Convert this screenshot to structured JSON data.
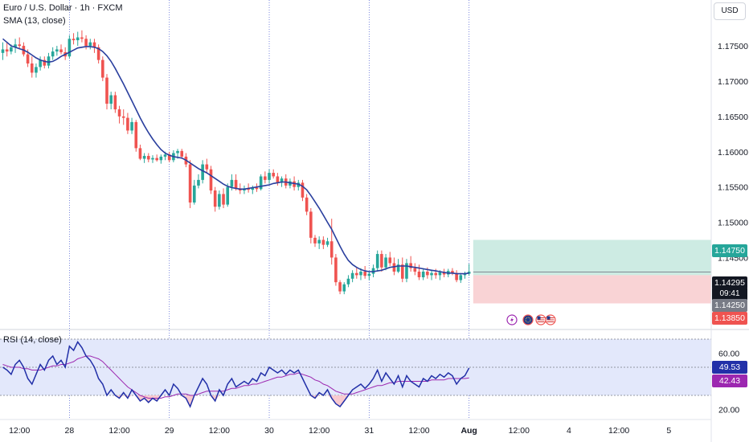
{
  "header": {
    "title": "Euro / U.S. Dollar · 1h · FXCM",
    "sma_label": "SMA (13, close)",
    "rsi_label": "RSI (14, close)",
    "currency": "USD"
  },
  "price_tags": {
    "target": "1.14750",
    "current": "1.14295",
    "countdown": "09:41",
    "entry": "1.14250",
    "stop": "1.13850"
  },
  "rsi_tags": {
    "rsi": "49.53",
    "rsi_ma": "42.43"
  },
  "colors": {
    "up": "#26a69a",
    "down": "#ef5350",
    "sma": "#2a3f9e",
    "rsi": "#2230a8",
    "rsi_ma": "#9c27b0",
    "target_zone": "#cdebe3",
    "stop_zone": "#f9d3d5",
    "rsi_band": "#e3e8fb"
  },
  "icons": [
    "lightning-event-icon",
    "eu-flag-icon",
    "us-flag-icon",
    "us-flag-icon"
  ],
  "chart_data": [
    {
      "type": "candlestick",
      "title": "Euro / U.S. Dollar · 1h · FXCM",
      "ylim": [
        1.1348,
        1.1815
      ],
      "y_ticks": [
        1.175,
        1.17,
        1.165,
        1.16,
        1.155,
        1.15,
        1.145
      ],
      "y_tick_labels": [
        "1.17500",
        "1.17000",
        "1.16500",
        "1.16000",
        "1.15500",
        "1.15000",
        "1.14500"
      ],
      "x_ticks": [
        {
          "label": "12:00",
          "t": 4
        },
        {
          "label": "28",
          "t": 16
        },
        {
          "label": "12:00",
          "t": 28
        },
        {
          "label": "29",
          "t": 40
        },
        {
          "label": "12:00",
          "t": 52
        },
        {
          "label": "30",
          "t": 64
        },
        {
          "label": "12:00",
          "t": 76
        },
        {
          "label": "31",
          "t": 88
        },
        {
          "label": "12:00",
          "t": 100
        },
        {
          "label": "Aug",
          "t": 112
        },
        {
          "label": "12:00",
          "t": 124
        },
        {
          "label": "4",
          "t": 136
        },
        {
          "label": "12:00",
          "t": 148
        },
        {
          "label": "5",
          "t": 160
        }
      ],
      "day_separators_t": [
        16,
        40,
        64,
        88,
        112
      ],
      "ohlc": [
        [
          1.174,
          1.1755,
          1.173,
          1.1745
        ],
        [
          1.1745,
          1.1755,
          1.1735,
          1.1742
        ],
        [
          1.1742,
          1.1752,
          1.1738,
          1.1748
        ],
        [
          1.1748,
          1.176,
          1.174,
          1.1752
        ],
        [
          1.1752,
          1.1762,
          1.1745,
          1.175
        ],
        [
          1.175,
          1.1755,
          1.1735,
          1.1738
        ],
        [
          1.1738,
          1.1745,
          1.172,
          1.1725
        ],
        [
          1.1725,
          1.1735,
          1.1705,
          1.1712
        ],
        [
          1.1712,
          1.1725,
          1.1705,
          1.172
        ],
        [
          1.172,
          1.1735,
          1.1715,
          1.173
        ],
        [
          1.173,
          1.1735,
          1.1718,
          1.1722
        ],
        [
          1.1722,
          1.174,
          1.1718,
          1.1735
        ],
        [
          1.1735,
          1.1748,
          1.173,
          1.1742
        ],
        [
          1.1742,
          1.175,
          1.1736,
          1.1745
        ],
        [
          1.1745,
          1.1752,
          1.1738,
          1.1741
        ],
        [
          1.1741,
          1.1748,
          1.173,
          1.1735
        ],
        [
          1.1735,
          1.1765,
          1.1732,
          1.176
        ],
        [
          1.176,
          1.1768,
          1.1752,
          1.1758
        ],
        [
          1.1758,
          1.177,
          1.175,
          1.1762
        ],
        [
          1.1762,
          1.1772,
          1.1755,
          1.176
        ],
        [
          1.176,
          1.1765,
          1.1745,
          1.175
        ],
        [
          1.175,
          1.176,
          1.1745,
          1.1755
        ],
        [
          1.1755,
          1.176,
          1.174,
          1.1748
        ],
        [
          1.1748,
          1.1752,
          1.1725,
          1.173
        ],
        [
          1.173,
          1.1735,
          1.17,
          1.1705
        ],
        [
          1.1705,
          1.171,
          1.166,
          1.1668
        ],
        [
          1.1668,
          1.1685,
          1.166,
          1.168
        ],
        [
          1.168,
          1.1685,
          1.1655,
          1.166
        ],
        [
          1.166,
          1.1665,
          1.164,
          1.165
        ],
        [
          1.165,
          1.166,
          1.1638,
          1.1648
        ],
        [
          1.1648,
          1.1655,
          1.1625,
          1.163
        ],
        [
          1.163,
          1.1648,
          1.1625,
          1.1642
        ],
        [
          1.1642,
          1.1645,
          1.16,
          1.1605
        ],
        [
          1.1605,
          1.161,
          1.1588,
          1.159
        ],
        [
          1.159,
          1.1598,
          1.1584,
          1.1594
        ],
        [
          1.1594,
          1.1598,
          1.1585,
          1.1589
        ],
        [
          1.1589,
          1.1595,
          1.1584,
          1.1591
        ],
        [
          1.1591,
          1.1596,
          1.1586,
          1.1588
        ],
        [
          1.1588,
          1.1596,
          1.1583,
          1.1593
        ],
        [
          1.1593,
          1.16,
          1.1588,
          1.1596
        ],
        [
          1.1596,
          1.16,
          1.1585,
          1.1588
        ],
        [
          1.1588,
          1.1602,
          1.1585,
          1.1598
        ],
        [
          1.1598,
          1.1604,
          1.159,
          1.1601
        ],
        [
          1.1601,
          1.1604,
          1.159,
          1.1593
        ],
        [
          1.1593,
          1.1598,
          1.1578,
          1.1582
        ],
        [
          1.1582,
          1.1588,
          1.152,
          1.1528
        ],
        [
          1.1528,
          1.156,
          1.1525,
          1.1552
        ],
        [
          1.1552,
          1.1568,
          1.1548,
          1.156
        ],
        [
          1.156,
          1.1588,
          1.1555,
          1.1582
        ],
        [
          1.1582,
          1.159,
          1.157,
          1.1575
        ],
        [
          1.1575,
          1.158,
          1.154,
          1.1545
        ],
        [
          1.1545,
          1.155,
          1.1515,
          1.1522
        ],
        [
          1.1522,
          1.1545,
          1.1518,
          1.154
        ],
        [
          1.154,
          1.1548,
          1.152,
          1.1525
        ],
        [
          1.1525,
          1.1555,
          1.1522,
          1.155
        ],
        [
          1.155,
          1.1568,
          1.1545,
          1.156
        ],
        [
          1.156,
          1.1568,
          1.1545,
          1.1548
        ],
        [
          1.1548,
          1.1555,
          1.154,
          1.1545
        ],
        [
          1.1545,
          1.1552,
          1.154,
          1.1548
        ],
        [
          1.1548,
          1.1555,
          1.1542,
          1.1546
        ],
        [
          1.1546,
          1.1552,
          1.154,
          1.1549
        ],
        [
          1.1549,
          1.1555,
          1.1543,
          1.1547
        ],
        [
          1.1547,
          1.1568,
          1.1545,
          1.1565
        ],
        [
          1.1565,
          1.1572,
          1.1555,
          1.156
        ],
        [
          1.156,
          1.1575,
          1.1555,
          1.157
        ],
        [
          1.157,
          1.1575,
          1.1562,
          1.1565
        ],
        [
          1.1565,
          1.157,
          1.1552,
          1.1556
        ],
        [
          1.1556,
          1.1565,
          1.155,
          1.1562
        ],
        [
          1.1562,
          1.1568,
          1.1548,
          1.1552
        ],
        [
          1.1552,
          1.1562,
          1.1548,
          1.1558
        ],
        [
          1.1558,
          1.1565,
          1.1545,
          1.155
        ],
        [
          1.155,
          1.156,
          1.1545,
          1.1556
        ],
        [
          1.1556,
          1.156,
          1.153,
          1.1535
        ],
        [
          1.1535,
          1.154,
          1.151,
          1.1515
        ],
        [
          1.1515,
          1.152,
          1.147,
          1.1478
        ],
        [
          1.1478,
          1.1482,
          1.1465,
          1.147
        ],
        [
          1.147,
          1.148,
          1.1462,
          1.1475
        ],
        [
          1.1475,
          1.148,
          1.1462,
          1.1468
        ],
        [
          1.1468,
          1.1478,
          1.1465,
          1.1473
        ],
        [
          1.1473,
          1.1505,
          1.144,
          1.145
        ],
        [
          1.145,
          1.1455,
          1.141,
          1.1415
        ],
        [
          1.1415,
          1.1418,
          1.1398,
          1.1402
        ],
        [
          1.1402,
          1.1415,
          1.1398,
          1.1412
        ],
        [
          1.1412,
          1.1425,
          1.1408,
          1.142
        ],
        [
          1.142,
          1.1432,
          1.1415,
          1.1428
        ],
        [
          1.1428,
          1.1436,
          1.142,
          1.1425
        ],
        [
          1.1425,
          1.1435,
          1.1418,
          1.143
        ],
        [
          1.143,
          1.1438,
          1.142,
          1.1424
        ],
        [
          1.1424,
          1.143,
          1.1418,
          1.1427
        ],
        [
          1.1427,
          1.144,
          1.1422,
          1.1435
        ],
        [
          1.1435,
          1.146,
          1.143,
          1.1455
        ],
        [
          1.1455,
          1.146,
          1.143,
          1.1436
        ],
        [
          1.1436,
          1.1455,
          1.1432,
          1.145
        ],
        [
          1.145,
          1.1458,
          1.1438,
          1.1442
        ],
        [
          1.1442,
          1.145,
          1.1425,
          1.143
        ],
        [
          1.143,
          1.1448,
          1.1428,
          1.144
        ],
        [
          1.144,
          1.145,
          1.1415,
          1.142
        ],
        [
          1.142,
          1.1448,
          1.1415,
          1.1442
        ],
        [
          1.1442,
          1.1452,
          1.143,
          1.1435
        ],
        [
          1.1435,
          1.1442,
          1.1425,
          1.143
        ],
        [
          1.143,
          1.144,
          1.1418,
          1.1422
        ],
        [
          1.1422,
          1.1435,
          1.1418,
          1.143
        ],
        [
          1.143,
          1.1436,
          1.142,
          1.1425
        ],
        [
          1.1425,
          1.1432,
          1.1418,
          1.1428
        ],
        [
          1.1428,
          1.1434,
          1.142,
          1.1425
        ],
        [
          1.1425,
          1.1432,
          1.1418,
          1.1429
        ],
        [
          1.1429,
          1.1434,
          1.1422,
          1.1426
        ],
        [
          1.1426,
          1.1434,
          1.1422,
          1.1431
        ],
        [
          1.1431,
          1.1435,
          1.1425,
          1.1428
        ],
        [
          1.1428,
          1.1432,
          1.1415,
          1.1418
        ],
        [
          1.1418,
          1.1428,
          1.1414,
          1.1425
        ],
        [
          1.1425,
          1.143,
          1.142,
          1.1427
        ],
        [
          1.1427,
          1.1441,
          1.1424,
          1.143
        ]
      ],
      "sma": [
        1.176,
        1.1755,
        1.175,
        1.1748,
        1.1746,
        1.1744,
        1.1741,
        1.1737,
        1.1733,
        1.173,
        1.1728,
        1.1727,
        1.1728,
        1.1731,
        1.1735,
        1.1738,
        1.1741,
        1.1744,
        1.1747,
        1.1748,
        1.1749,
        1.1749,
        1.1748,
        1.1746,
        1.1742,
        1.1736,
        1.1728,
        1.1718,
        1.1707,
        1.1696,
        1.1684,
        1.1672,
        1.166,
        1.1648,
        1.1637,
        1.1627,
        1.1618,
        1.161,
        1.1603,
        1.1598,
        1.1595,
        1.1593,
        1.1592,
        1.1591,
        1.1588,
        1.1584,
        1.158,
        1.1576,
        1.1573,
        1.157,
        1.1566,
        1.1562,
        1.1558,
        1.1554,
        1.1551,
        1.1549,
        1.1548,
        1.1547,
        1.1547,
        1.1548,
        1.1549,
        1.155,
        1.1551,
        1.1552,
        1.1553,
        1.1555,
        1.1556,
        1.1557,
        1.1557,
        1.1556,
        1.1555,
        1.1554,
        1.1551,
        1.1546,
        1.1538,
        1.1529,
        1.152,
        1.151,
        1.15,
        1.149,
        1.1478,
        1.1466,
        1.1455,
        1.1446,
        1.144,
        1.1436,
        1.1433,
        1.1431,
        1.143,
        1.143,
        1.1431,
        1.1432,
        1.1434,
        1.1436,
        1.1437,
        1.1438,
        1.1438,
        1.1438,
        1.1437,
        1.1436,
        1.1435,
        1.1434,
        1.1433,
        1.1432,
        1.1431,
        1.143,
        1.1429,
        1.1428,
        1.1428,
        1.1427,
        1.1427,
        1.1427,
        1.1428
      ],
      "trade_box": {
        "target": 1.1475,
        "entry": 1.1425,
        "stop": 1.1385,
        "t_start": 113
      },
      "current_price": 1.14295
    },
    {
      "type": "line",
      "title": "RSI (14, close)",
      "ylim": [
        15,
        70
      ],
      "y_ticks": [
        60,
        20
      ],
      "y_tick_labels": [
        "60.00",
        "20.00"
      ],
      "band": [
        30,
        70
      ],
      "mid": 50,
      "series": [
        {
          "values": [
            50,
            48,
            45,
            52,
            55,
            50,
            42,
            38,
            45,
            52,
            48,
            55,
            58,
            52,
            55,
            50,
            65,
            62,
            68,
            64,
            58,
            55,
            50,
            42,
            38,
            30,
            34,
            30,
            28,
            32,
            28,
            34,
            30,
            26,
            28,
            25,
            28,
            26,
            30,
            34,
            30,
            38,
            35,
            30,
            28,
            22,
            30,
            36,
            42,
            38,
            30,
            26,
            34,
            30,
            38,
            42,
            36,
            38,
            40,
            38,
            42,
            40,
            46,
            44,
            50,
            48,
            46,
            48,
            45,
            48,
            46,
            48,
            42,
            36,
            30,
            28,
            32,
            30,
            34,
            28,
            24,
            22,
            26,
            30,
            34,
            36,
            38,
            35,
            38,
            42,
            48,
            40,
            46,
            42,
            38,
            44,
            36,
            44,
            40,
            38,
            36,
            42,
            40,
            44,
            42,
            45,
            43,
            46,
            44,
            38,
            42,
            44,
            49.53
          ]
        },
        {
          "values": [
            52,
            51,
            50,
            50,
            50,
            49,
            49,
            48,
            48,
            48,
            49,
            50,
            51,
            51,
            52,
            52,
            53,
            54,
            56,
            57,
            58,
            58,
            57,
            56,
            54,
            51,
            48,
            45,
            42,
            39,
            36,
            34,
            32,
            30,
            29,
            28,
            28,
            28,
            28,
            29,
            29,
            30,
            31,
            31,
            31,
            30,
            30,
            31,
            32,
            33,
            33,
            33,
            33,
            33,
            34,
            35,
            35,
            36,
            37,
            37,
            38,
            38,
            39,
            40,
            41,
            42,
            43,
            43,
            44,
            45,
            45,
            46,
            45,
            44,
            43,
            41,
            40,
            38,
            37,
            35,
            33,
            32,
            31,
            31,
            31,
            32,
            33,
            34,
            35,
            36,
            37,
            37,
            38,
            39,
            39,
            40,
            40,
            40,
            40,
            40,
            40,
            40,
            40,
            41,
            41,
            41,
            41,
            42,
            42,
            42,
            42,
            42,
            42.43
          ]
        }
      ]
    }
  ]
}
